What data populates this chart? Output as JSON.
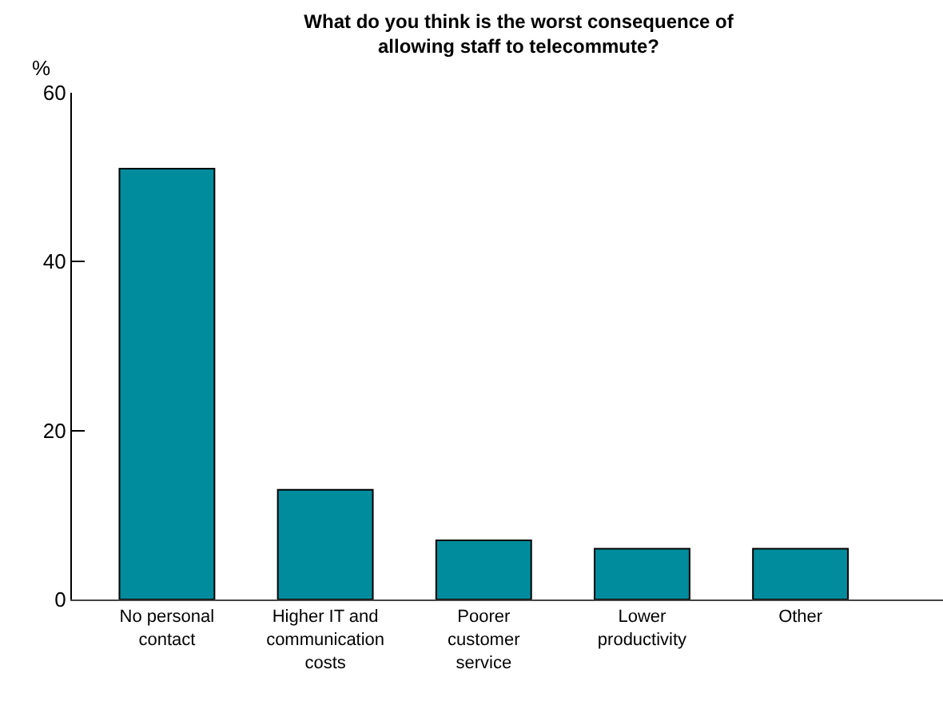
{
  "chart_data": {
    "type": "bar",
    "title": "What do you think is the worst consequence of allowing staff to telecommute?",
    "ylabel": "%",
    "categories": [
      "No personal contact",
      "Higher IT and communication costs",
      "Poorer customer service",
      "Lower productivity",
      "Other"
    ],
    "values": [
      51,
      13,
      7,
      6,
      6
    ],
    "color": "#008c9c",
    "ylim": [
      0,
      60
    ],
    "yticks": [
      0,
      20,
      40,
      60
    ],
    "grid": false
  }
}
